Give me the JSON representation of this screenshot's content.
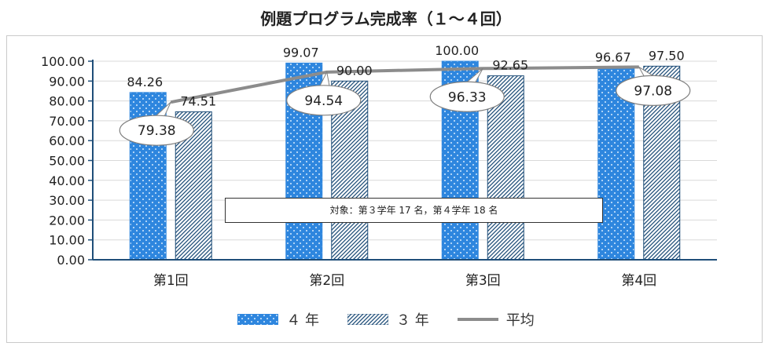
{
  "chart_data": {
    "type": "bar",
    "title": "例題プログラム完成率（１～４回）",
    "categories": [
      "第1回",
      "第2回",
      "第3回",
      "第4回"
    ],
    "series": [
      {
        "name": "４ 年",
        "type": "bar",
        "values": [
          84.26,
          99.07,
          100.0,
          96.67
        ],
        "value_labels": [
          "84.26",
          "99.07",
          "100.00",
          "96.67"
        ],
        "color": "#2e86de"
      },
      {
        "name": "３ 年",
        "type": "bar",
        "values": [
          74.51,
          90.0,
          92.65,
          97.5
        ],
        "value_labels": [
          "74.51",
          "90.00",
          "92.65",
          "97.50"
        ],
        "color": "#1f4e79"
      },
      {
        "name": "平均",
        "type": "line",
        "values": [
          79.38,
          94.54,
          96.33,
          97.08
        ],
        "value_labels": [
          "79.38",
          "94.54",
          "96.33",
          "97.08"
        ],
        "color": "#8c8c8c"
      }
    ],
    "ylim": [
      0,
      100
    ],
    "yticks": [
      "0.00",
      "10.00",
      "20.00",
      "30.00",
      "40.00",
      "50.00",
      "60.00",
      "70.00",
      "80.00",
      "90.00",
      "100.00"
    ],
    "grid": true,
    "legend_position": "bottom",
    "annotation": "対象：第３学年 17 名，第４学年 18 名"
  }
}
